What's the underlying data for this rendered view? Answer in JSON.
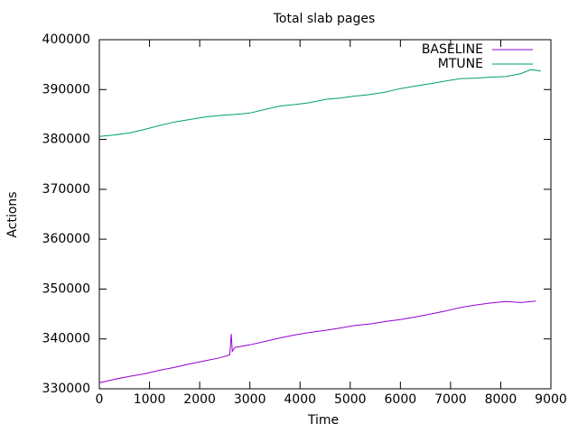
{
  "chart_data": {
    "type": "line",
    "title": "Total slab pages",
    "xlabel": "Time",
    "ylabel": "Actions",
    "xlim": [
      0,
      9000
    ],
    "xticks": [
      0,
      1000,
      2000,
      3000,
      4000,
      5000,
      6000,
      7000,
      8000,
      9000
    ],
    "ylim": [
      330000,
      400000
    ],
    "yticks": [
      330000,
      340000,
      350000,
      360000,
      370000,
      380000,
      390000,
      400000
    ],
    "legend": "top-right",
    "series": [
      {
        "name": "BASELINE",
        "color": "#9400d3",
        "x": [
          0,
          300,
          600,
          900,
          1200,
          1500,
          1800,
          2100,
          2400,
          2600,
          2630,
          2650,
          2700,
          3000,
          3300,
          3600,
          3900,
          4200,
          4500,
          4800,
          5100,
          5400,
          5700,
          6000,
          6300,
          6600,
          6900,
          7200,
          7500,
          7800,
          8100,
          8400,
          8700
        ],
        "values": [
          331200,
          331900,
          332500,
          333000,
          333700,
          334300,
          335000,
          335600,
          336200,
          336800,
          341000,
          337500,
          338300,
          338800,
          339500,
          340200,
          340800,
          341300,
          341700,
          342200,
          342700,
          343000,
          343500,
          343900,
          344400,
          345000,
          345600,
          346300,
          346800,
          347200,
          347500,
          347300,
          347600
        ]
      },
      {
        "name": "MTUNE",
        "color": "#009e73",
        "x": [
          0,
          300,
          600,
          900,
          1200,
          1500,
          1800,
          2100,
          2400,
          2700,
          3000,
          3300,
          3600,
          3900,
          4200,
          4500,
          4800,
          5100,
          5400,
          5700,
          6000,
          6300,
          6600,
          6900,
          7200,
          7500,
          7800,
          8100,
          8400,
          8600,
          8800
        ],
        "values": [
          380600,
          380900,
          381300,
          382000,
          382800,
          383500,
          384000,
          384500,
          384800,
          385000,
          385300,
          386000,
          386700,
          387000,
          387400,
          388000,
          388300,
          388700,
          389000,
          389500,
          390200,
          390700,
          391200,
          391700,
          392200,
          392300,
          392500,
          392600,
          393200,
          394000,
          393700
        ]
      }
    ]
  }
}
